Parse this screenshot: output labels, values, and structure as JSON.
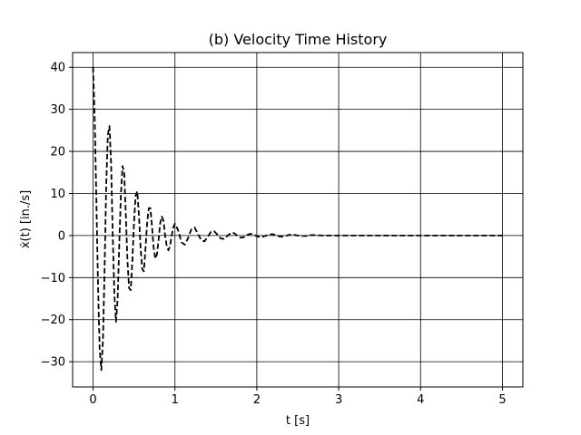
{
  "chart_data": {
    "type": "line",
    "title": "(b) Velocity Time History",
    "xlabel": "t [s]",
    "ylabel": "ẋ(t) [in./s]",
    "xlim": [
      -0.25,
      5.25
    ],
    "ylim": [
      -36,
      43.5
    ],
    "xticks": [
      0,
      1,
      2,
      3,
      4,
      5
    ],
    "yticks": [
      -30,
      -20,
      -10,
      0,
      10,
      20,
      30,
      40
    ],
    "xtick_labels": [
      "0",
      "1",
      "2",
      "3",
      "4",
      "5"
    ],
    "ytick_labels": [
      "−30",
      "−20",
      "−10",
      "0",
      "10",
      "20",
      "30",
      "40"
    ],
    "grid": true,
    "line_color": "#000000",
    "line_style": "dashed",
    "series": [
      {
        "x": [
          0,
          0.02,
          0.04,
          0.06,
          0.08,
          0.1,
          0.12,
          0.14,
          0.16,
          0.18,
          0.2,
          0.22,
          0.24,
          0.26,
          0.28,
          0.3,
          0.32,
          0.34,
          0.36,
          0.38,
          0.4,
          0.42,
          0.44,
          0.46,
          0.48,
          0.5,
          0.52,
          0.54,
          0.56,
          0.58,
          0.6,
          0.62,
          0.64,
          0.66,
          0.68,
          0.7,
          0.72,
          0.74,
          0.76,
          0.78,
          0.8,
          0.82,
          0.84,
          0.86,
          0.88,
          0.9,
          0.92,
          0.94,
          0.96,
          0.98,
          1.0,
          1.04,
          1.08,
          1.12,
          1.16,
          1.2,
          1.24,
          1.28,
          1.32,
          1.36,
          1.4,
          1.44,
          1.48,
          1.52,
          1.56,
          1.6,
          1.64,
          1.68,
          1.72,
          1.76,
          1.8,
          1.84,
          1.88,
          1.92,
          1.96,
          2.0,
          2.05,
          2.1,
          2.15,
          2.2,
          2.25,
          2.3,
          2.35,
          2.4,
          2.45,
          2.5,
          2.55,
          2.6,
          2.65,
          2.7,
          2.8,
          2.9,
          3.0,
          3.2,
          3.4,
          3.6,
          3.8,
          4.0,
          4.5,
          5.0
        ],
        "y": [
          40,
          28,
          8,
          -12,
          -27,
          -32,
          -25,
          -8,
          12,
          24,
          26,
          17,
          0,
          -14,
          -20.5,
          -15,
          -2,
          10,
          16.5,
          15,
          5,
          -6,
          -12.5,
          -13,
          -6,
          3,
          9.5,
          10.5,
          5,
          -3,
          -8,
          -8.5,
          -3,
          3,
          6.5,
          6.5,
          2,
          -3,
          -5.5,
          -4.5,
          -1,
          3,
          4.5,
          3.5,
          0,
          -2.5,
          -3.5,
          -2.5,
          0,
          2,
          2.8,
          1.2,
          -1.6,
          -2.2,
          -0.6,
          1.5,
          1.9,
          0.4,
          -1.1,
          -1.4,
          -0.3,
          0.9,
          1.0,
          0.2,
          -0.7,
          -0.8,
          -0.1,
          0.6,
          0.6,
          0,
          -0.5,
          -0.4,
          0.1,
          0.4,
          0.3,
          -0.2,
          -0.4,
          -0.1,
          0.3,
          0.3,
          -0.1,
          -0.3,
          -0.1,
          0.2,
          0.2,
          0,
          -0.1,
          -0.1,
          0.1,
          0.1,
          0,
          0,
          0,
          0,
          0,
          0,
          0,
          0,
          0,
          0
        ]
      }
    ]
  }
}
